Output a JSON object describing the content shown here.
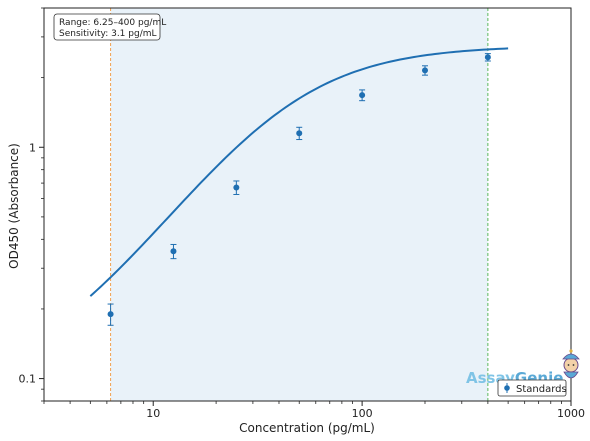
{
  "chart_data": {
    "type": "scatter",
    "xlabel": "Concentration (pg/mL)",
    "ylabel": "OD450 (Absorbance)",
    "xscale": "log",
    "yscale": "log",
    "xlim": [
      3,
      1000
    ],
    "ylim": [
      0.08,
      4.0
    ],
    "x_ticks": [
      10,
      100,
      1000
    ],
    "x_tick_labels": [
      "10",
      "100",
      "1000"
    ],
    "y_ticks": [
      0.1,
      1
    ],
    "y_tick_labels": [
      "0.1",
      "1"
    ],
    "series": [
      {
        "name": "Standards",
        "color": "#1f6fb2",
        "x": [
          6.25,
          12.5,
          25,
          50,
          100,
          200,
          400
        ],
        "y": [
          0.19,
          0.355,
          0.67,
          1.15,
          1.68,
          2.15,
          2.45
        ],
        "yerr": [
          0.02,
          0.025,
          0.045,
          0.07,
          0.09,
          0.1,
          0.09
        ]
      }
    ],
    "fit_curve": {
      "model": "4PL",
      "color": "#1f6fb2",
      "x_range": [
        5,
        500
      ],
      "A": 0.09,
      "B": 1.4,
      "C": 40,
      "D": 2.75
    },
    "range_band": {
      "x_min": 6.25,
      "x_max": 400,
      "color": "#e9f2f9"
    },
    "vlines": [
      {
        "x": 6.25,
        "color": "#f0a050"
      },
      {
        "x": 400,
        "color": "#5cb85c"
      }
    ],
    "annotation_lines": [
      "Range: 6.25–400 pg/mL",
      "Sensitivity: 3.1 pg/mL"
    ],
    "legend": {
      "position": "bottom-right",
      "label": "Standards"
    },
    "grid": false
  },
  "logo": {
    "part1": "Assay",
    "part2": "Genie"
  }
}
